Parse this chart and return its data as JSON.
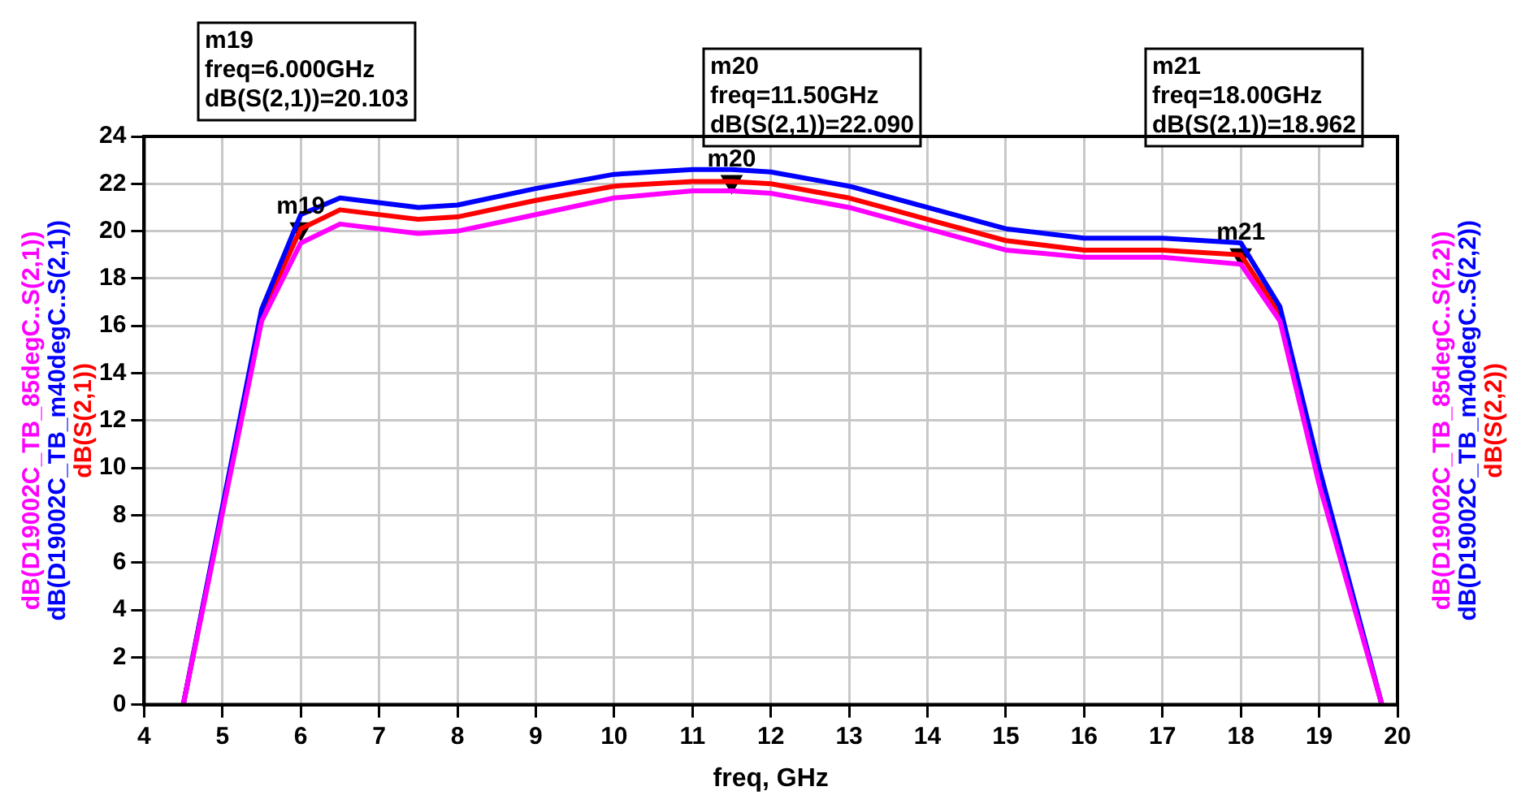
{
  "chart_data": {
    "type": "line",
    "xlabel": "freq, GHz",
    "x": [
      4.5,
      5.5,
      6,
      6.5,
      7.5,
      8,
      9,
      10,
      11,
      11.5,
      12,
      13,
      14,
      15,
      16,
      17,
      18,
      18.5,
      19,
      19.8
    ],
    "series": [
      {
        "name": "dB(D19002C_TB_85degC..S(2,1))",
        "color": "#ff00ff",
        "values": [
          0,
          16.2,
          19.5,
          20.3,
          19.9,
          20.0,
          20.7,
          21.4,
          21.7,
          21.7,
          21.6,
          21.0,
          20.1,
          19.2,
          18.9,
          18.9,
          18.6,
          16.2,
          9.3,
          0
        ]
      },
      {
        "name": "dB(D19002C_TB_m40degC..S(2,1))",
        "color": "#0000ff",
        "values": [
          0,
          16.7,
          20.7,
          21.4,
          21.0,
          21.1,
          21.8,
          22.4,
          22.6,
          22.6,
          22.5,
          21.9,
          21.0,
          20.1,
          19.7,
          19.7,
          19.5,
          16.8,
          10.0,
          0
        ]
      },
      {
        "name": "dB(S(2,1))",
        "color": "#ff0000",
        "values": [
          0,
          16.5,
          20.1,
          20.9,
          20.5,
          20.6,
          21.3,
          21.9,
          22.1,
          22.1,
          22.0,
          21.4,
          20.5,
          19.6,
          19.2,
          19.2,
          19.0,
          16.5,
          9.6,
          0
        ]
      },
      {
        "type": "scatter",
        "color": "#000000",
        "marker": "triangle",
        "x": [
          6,
          11.5,
          18
        ],
        "values": [
          20.1,
          22.1,
          19.0
        ]
      }
    ],
    "xlim": [
      4,
      20
    ],
    "xticks": [
      4,
      5,
      6,
      7,
      8,
      9,
      10,
      11,
      12,
      13,
      14,
      15,
      16,
      17,
      18,
      19,
      20
    ],
    "ylim": [
      0,
      24
    ],
    "yticks": [
      0,
      2,
      4,
      6,
      8,
      10,
      12,
      14,
      16,
      18,
      20,
      22,
      24
    ],
    "grid": true,
    "legend": false,
    "marker": "none",
    "line_style": "solid",
    "annotations": [
      "m19\nfreq=6.000GHz\ndB(S(2,1))=20.103",
      "m20\nfreq=11.50GHz\ndB(S(2,1))=22.090",
      "m21\nfreq=18.00GHz\ndB(S(2,1))=18.962",
      {
        "text": "m19",
        "x": 6,
        "y": 20.1
      },
      {
        "text": "m20",
        "x": 11.5,
        "y": 22.1
      },
      {
        "text": "m21",
        "x": 18,
        "y": 19.0
      },
      "dB(D19002C_TB_85degC..S(2,2))",
      "dB(D19002C_TB_m40degC..S(2,2))",
      "dB(S(2,2))"
    ]
  }
}
